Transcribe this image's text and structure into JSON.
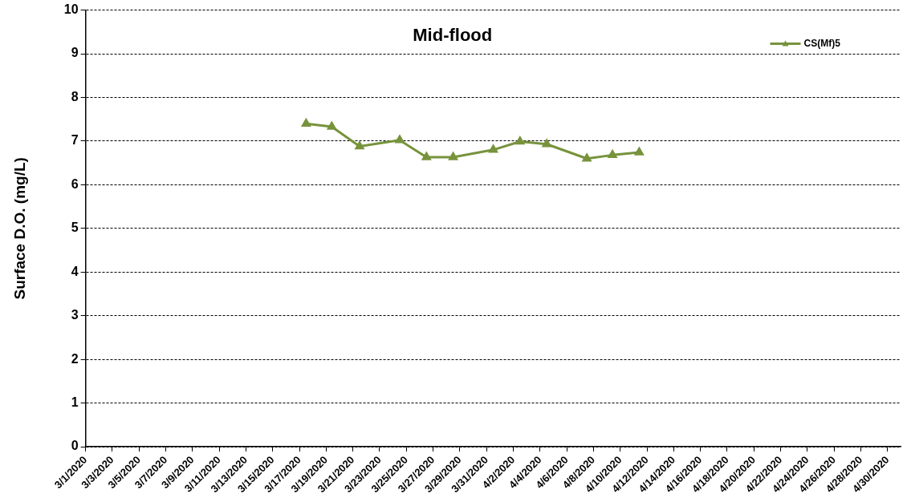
{
  "chart_data": {
    "type": "line",
    "title": "Mid-flood",
    "ylabel": "Surface D.O. (mg/L)",
    "xlim": [
      "2020-03-01",
      "2020-05-01"
    ],
    "xticks": [
      {
        "value": "2020-03-01",
        "label": "3/1/2020"
      },
      {
        "value": "2020-03-03",
        "label": "3/3/2020"
      },
      {
        "value": "2020-03-05",
        "label": "3/5/2020"
      },
      {
        "value": "2020-03-07",
        "label": "3/7/2020"
      },
      {
        "value": "2020-03-09",
        "label": "3/9/2020"
      },
      {
        "value": "2020-03-11",
        "label": "3/11/2020"
      },
      {
        "value": "2020-03-13",
        "label": "3/13/2020"
      },
      {
        "value": "2020-03-15",
        "label": "3/15/2020"
      },
      {
        "value": "2020-03-17",
        "label": "3/17/2020"
      },
      {
        "value": "2020-03-19",
        "label": "3/19/2020"
      },
      {
        "value": "2020-03-21",
        "label": "3/21/2020"
      },
      {
        "value": "2020-03-23",
        "label": "3/23/2020"
      },
      {
        "value": "2020-03-25",
        "label": "3/25/2020"
      },
      {
        "value": "2020-03-27",
        "label": "3/27/2020"
      },
      {
        "value": "2020-03-29",
        "label": "3/29/2020"
      },
      {
        "value": "2020-03-31",
        "label": "3/31/2020"
      },
      {
        "value": "2020-04-02",
        "label": "4/2/2020"
      },
      {
        "value": "2020-04-04",
        "label": "4/4/2020"
      },
      {
        "value": "2020-04-06",
        "label": "4/6/2020"
      },
      {
        "value": "2020-04-08",
        "label": "4/8/2020"
      },
      {
        "value": "2020-04-10",
        "label": "4/10/2020"
      },
      {
        "value": "2020-04-12",
        "label": "4/12/2020"
      },
      {
        "value": "2020-04-14",
        "label": "4/14/2020"
      },
      {
        "value": "2020-04-16",
        "label": "4/16/2020"
      },
      {
        "value": "2020-04-18",
        "label": "4/18/2020"
      },
      {
        "value": "2020-04-20",
        "label": "4/20/2020"
      },
      {
        "value": "2020-04-22",
        "label": "4/22/2020"
      },
      {
        "value": "2020-04-24",
        "label": "4/24/2020"
      },
      {
        "value": "2020-04-26",
        "label": "4/26/2020"
      },
      {
        "value": "2020-04-28",
        "label": "4/28/2020"
      },
      {
        "value": "2020-04-30",
        "label": "4/30/2020"
      }
    ],
    "ylim": [
      0,
      10
    ],
    "yticks": [
      0,
      1,
      2,
      3,
      4,
      5,
      6,
      7,
      8,
      9,
      10
    ],
    "grid": "y",
    "legend": "top right",
    "marker": "triangle",
    "line_style": "solid",
    "series": [
      {
        "name": "CS(Mf)5",
        "color": "#77933c",
        "x": [
          "2020-03-17T12:00",
          "2020-03-19T10:00",
          "2020-03-21T12:00",
          "2020-03-24T12:00",
          "2020-03-26T12:00",
          "2020-03-28T12:00",
          "2020-03-31T12:00",
          "2020-04-02T12:00",
          "2020-04-04T12:00",
          "2020-04-07T12:00",
          "2020-04-09T10:00",
          "2020-04-11T10:00"
        ],
        "values": [
          7.4,
          7.33,
          6.88,
          7.02,
          6.63,
          6.63,
          6.8,
          6.99,
          6.93,
          6.6,
          6.68,
          6.74
        ]
      }
    ]
  }
}
